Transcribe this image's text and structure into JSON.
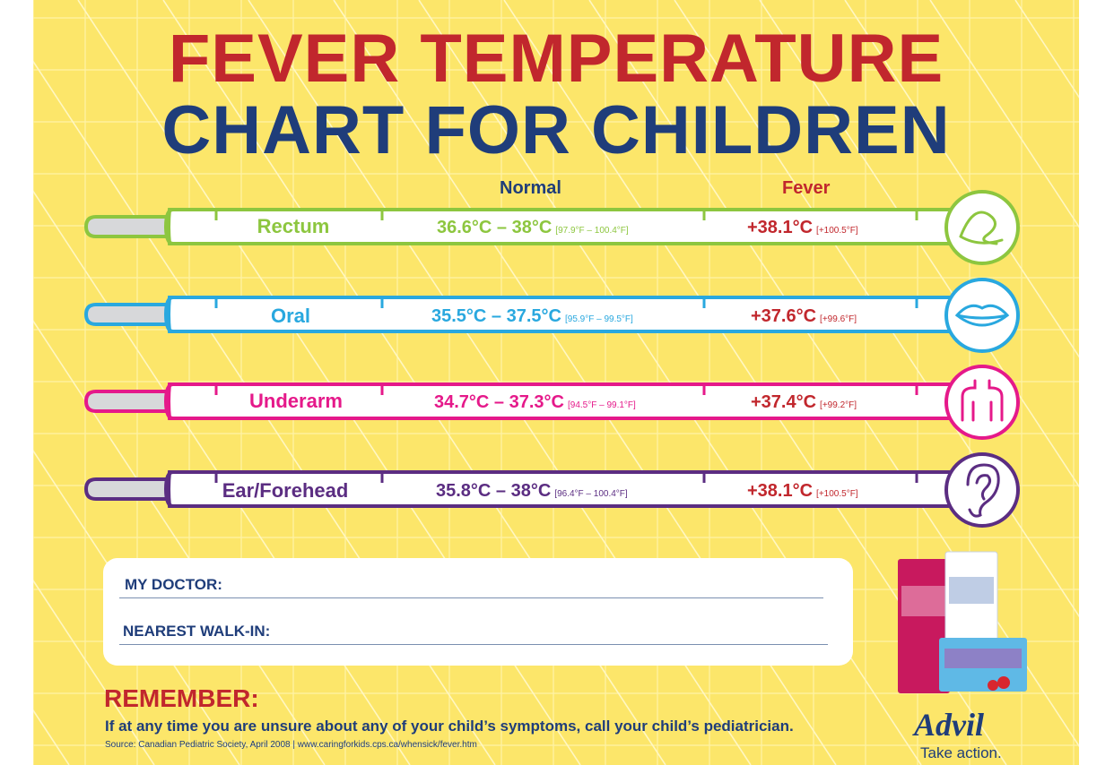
{
  "title": {
    "line1": "FEVER TEMPERATURE",
    "line2": "CHART FOR CHILDREN"
  },
  "columns": {
    "normal": "Normal",
    "fever": "Fever"
  },
  "colors": {
    "red": "#c1272d",
    "navy": "#1f3d7a",
    "background": "#fce66a"
  },
  "thermometers": [
    {
      "label": "Rectum",
      "normal_c": "36.6°C – 38°C",
      "normal_f": "[97.9°F – 100.4°F]",
      "fever_c": "+38.1°C",
      "fever_f": "[+100.5°F]",
      "color": "#8dc63f",
      "icon": "rectum-icon"
    },
    {
      "label": "Oral",
      "normal_c": "35.5°C – 37.5°C",
      "normal_f": "[95.9°F – 99.5°F]",
      "fever_c": "+37.6°C",
      "fever_f": "[+99.6°F]",
      "color": "#29a8df",
      "icon": "lips-icon"
    },
    {
      "label": "Underarm",
      "normal_c": "34.7°C – 37.3°C",
      "normal_f": "[94.5°F – 99.1°F]",
      "fever_c": "+37.4°C",
      "fever_f": "[+99.2°F]",
      "color": "#e5198a",
      "icon": "underarm-icon"
    },
    {
      "label": "Ear/Forehead",
      "normal_c": "35.8°C – 38°C",
      "normal_f": "[96.4°F – 100.4°F]",
      "fever_c": "+38.1°C",
      "fever_f": "[+100.5°F]",
      "color": "#5b2d82",
      "icon": "ear-icon"
    }
  ],
  "contact": {
    "doctor_label": "MY DOCTOR:",
    "walkin_label": "NEAREST WALK-IN:"
  },
  "remember": {
    "title": "REMEMBER:",
    "text": "If at any time you are unsure about any of your child’s symptoms, call your child’s pediatrician.",
    "source": "Source: Canadian Pediatric Society, April 2008  |  www.caringforkids.cps.ca/whensick/fever.htm"
  },
  "brand": {
    "name": "Advil",
    "tagline": "Take action."
  }
}
